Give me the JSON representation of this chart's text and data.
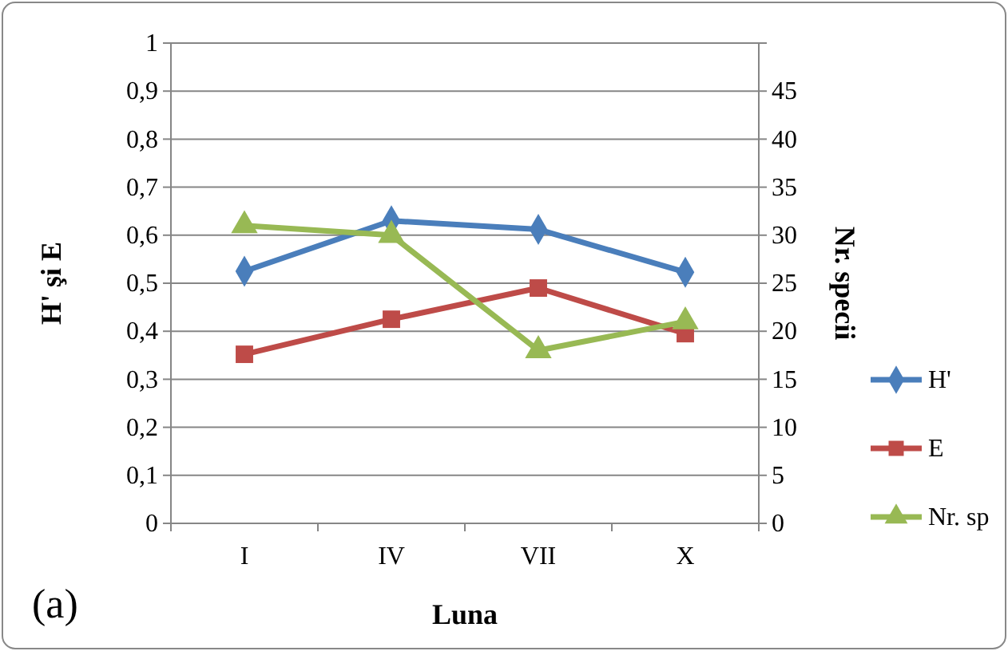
{
  "chart_data": {
    "type": "line",
    "categories": [
      "I",
      "IV",
      "VII",
      "X"
    ],
    "xlabel": "Luna",
    "ylabel": "H' şi E",
    "y2label": "Nr. specii",
    "ylim": [
      0,
      1
    ],
    "yticks": [
      0,
      {
        "value": 0.1,
        "label": "0,1"
      },
      {
        "value": 0.2,
        "label": "0,2"
      },
      {
        "value": 0.3,
        "label": "0,3"
      },
      {
        "value": 0.4,
        "label": "0,4"
      },
      {
        "value": 0.5,
        "label": "0,5"
      },
      {
        "value": 0.6,
        "label": "0,6"
      },
      {
        "value": 0.7,
        "label": "0,7"
      },
      {
        "value": 0.8,
        "label": "0,8"
      },
      {
        "value": 0.9,
        "label": "0,9"
      },
      1
    ],
    "y2lim": [
      0,
      50
    ],
    "y2ticks": [
      0,
      5,
      10,
      15,
      20,
      25,
      30,
      35,
      40,
      45
    ],
    "series": [
      {
        "name": "H'",
        "color": "#4a7ebb",
        "marker": "diamond",
        "values": [
          0.525,
          0.63,
          0.612,
          0.523
        ]
      },
      {
        "name": "E",
        "color": "#be4b48",
        "marker": "square",
        "values": [
          0.352,
          0.425,
          0.49,
          0.395
        ]
      },
      {
        "name": "Nr. sp",
        "color": "#98b954",
        "marker": "triangle",
        "axis": "y2",
        "values": [
          31,
          30,
          18,
          21
        ]
      }
    ],
    "grid": "y",
    "legend": "right",
    "annotations": [
      "(a)"
    ]
  }
}
